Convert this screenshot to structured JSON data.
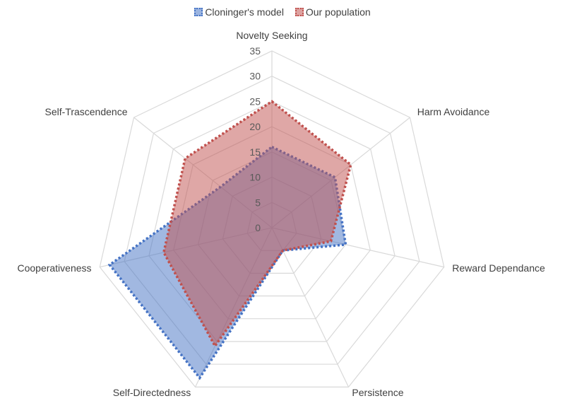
{
  "chart_data": {
    "type": "radar",
    "title": "",
    "categories": [
      "Novelty Seeking",
      "Harm Avoidance",
      "Reward Dependance",
      "Persistence",
      "Self-Directedness",
      "Cooperativeness",
      "Self-Trascendence"
    ],
    "series": [
      {
        "name": "Cloninger's model",
        "color": "#4472C4",
        "values": [
          16,
          16,
          15,
          5,
          33,
          33,
          13
        ]
      },
      {
        "name": "Our population",
        "color": "#C0504D",
        "values": [
          25,
          20,
          12,
          5,
          26,
          22,
          22
        ]
      }
    ],
    "rlim": [
      0,
      35
    ],
    "ticks": [
      "0",
      "5",
      "10",
      "15",
      "20",
      "25",
      "30",
      "35"
    ],
    "grid": true,
    "legend_position": "top"
  }
}
